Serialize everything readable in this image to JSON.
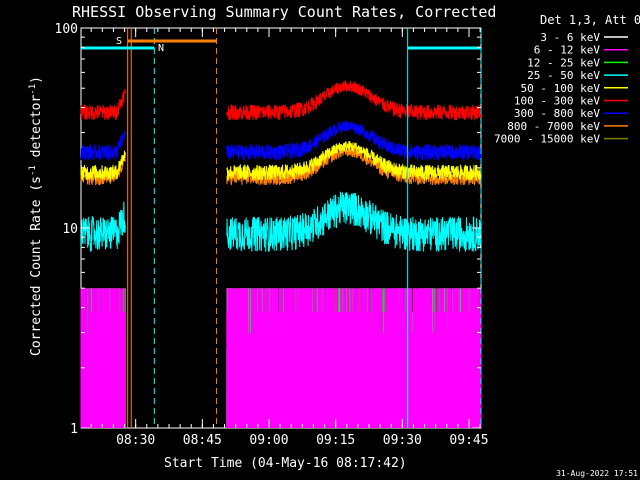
{
  "chart_data": {
    "type": "line",
    "title": "RHESSI Observing Summary Count Rates, Corrected",
    "xlabel": "Start Time (04-May-16 08:17:42)",
    "ylabel_parts": [
      "Corrected Count Rate (s",
      "-1",
      " detector",
      "-1",
      ")"
    ],
    "yscale": "log",
    "ylim": [
      1,
      100
    ],
    "y_ticks": [
      {
        "value": 1,
        "label": "1"
      },
      {
        "value": 10,
        "label": "10"
      },
      {
        "value": 100,
        "label": "100"
      }
    ],
    "xlim_minutes": [
      0,
      90
    ],
    "x_ticks": [
      {
        "value": 12.3,
        "label": "08:30"
      },
      {
        "value": 27.3,
        "label": "08:45"
      },
      {
        "value": 42.3,
        "label": "09:00"
      },
      {
        "value": 57.3,
        "label": "09:15"
      },
      {
        "value": 72.3,
        "label": "09:30"
      },
      {
        "value": 87.3,
        "label": "09:45"
      }
    ],
    "legend_title": "Det 1,3, Att 0",
    "legend_position": "top-right",
    "series": [
      {
        "name": "3 - 6 keV",
        "color": "#ffffff",
        "baseline": null
      },
      {
        "name": "6 - 12 keV",
        "color": "#ff00ff",
        "baseline": 3.8
      },
      {
        "name": "12 - 25 keV",
        "color": "#00ff00",
        "baseline": 3.0
      },
      {
        "name": "25 - 50 keV",
        "color": "#00ffff",
        "baseline": 9.5
      },
      {
        "name": "50 - 100 keV",
        "color": "#ffff00",
        "baseline": 19
      },
      {
        "name": "100 - 300 keV",
        "color": "#ff0000",
        "baseline": 38
      },
      {
        "name": "300 - 800 keV",
        "color": "#0000ff",
        "baseline": 24
      },
      {
        "name": "800 - 7000 keV",
        "color": "#ff8000",
        "baseline": 18
      },
      {
        "name": "7000 - 15000 keV",
        "color": "#808000",
        "baseline": 2.0
      }
    ],
    "data_segments_minutes": [
      [
        0,
        10.0
      ],
      [
        32.8,
        90
      ]
    ],
    "gap_minutes": [
      10.0,
      32.8
    ],
    "annotations": [
      {
        "label": "S",
        "start_min": 10.5,
        "end_min": 30.5,
        "color": "#ff8000"
      },
      {
        "label": "N",
        "start_min": 0,
        "end_min": 16.5,
        "color": "#00ffff"
      },
      {
        "label": "",
        "start_min": 73.5,
        "end_min": 90,
        "color": "#00ffff"
      }
    ],
    "markers": [
      {
        "minute": 10.5,
        "style": "solid",
        "color": "#ff8000"
      },
      {
        "minute": 11.3,
        "style": "solid",
        "color": "#ff8000"
      },
      {
        "minute": 16.5,
        "style": "dashed",
        "color": "#00ffff"
      },
      {
        "minute": 30.5,
        "style": "dashed",
        "color": "#ff8000"
      },
      {
        "minute": 73.5,
        "style": "solid",
        "color": "#00ffff"
      },
      {
        "minute": 90.0,
        "style": "dashed",
        "color": "#00ffff"
      }
    ]
  },
  "footer": {
    "timestamp": "31-Aug-2022 17:51"
  }
}
